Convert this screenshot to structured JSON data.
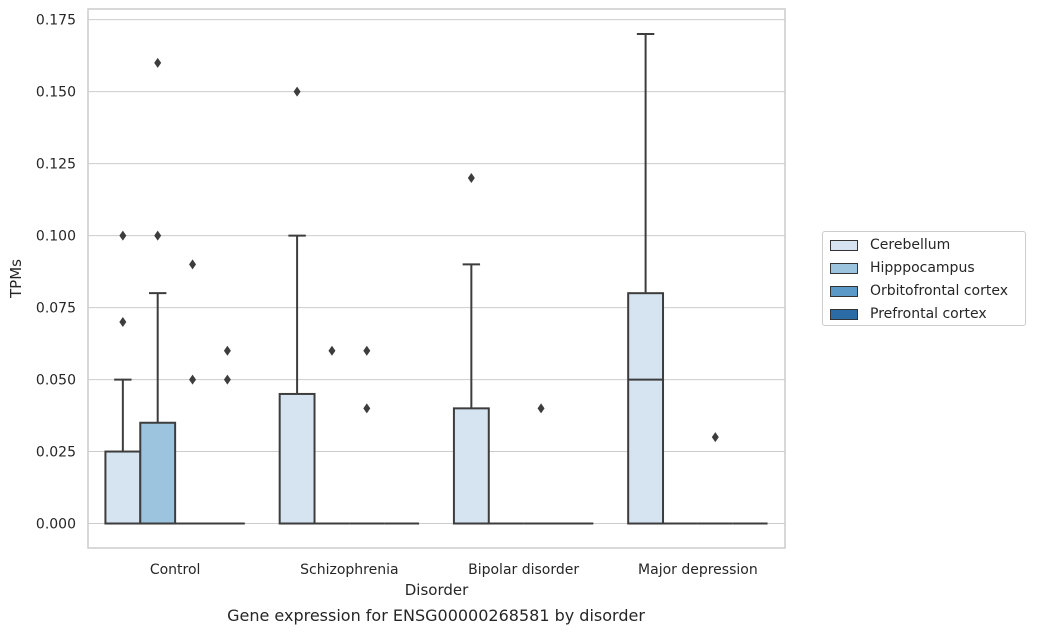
{
  "chart_data": {
    "type": "box",
    "xlabel": "Disorder",
    "ylabel": "TPMs",
    "categories": [
      "Control",
      "Schizophrenia",
      "Bipolar disorder",
      "Major depression"
    ],
    "ylim": [
      -0.0085,
      0.1787
    ],
    "yticks": [
      "0.000",
      "0.025",
      "0.050",
      "0.075",
      "0.100",
      "0.125",
      "0.150",
      "0.175"
    ],
    "grid": true,
    "legend_position": "right",
    "series": [
      {
        "name": "Cerebellum",
        "color": "#d6e4f2",
        "boxes": [
          {
            "q1": 0.0,
            "median": 0.0,
            "q3": 0.025,
            "whisker_low": 0.0,
            "whisker_high": 0.05,
            "fliers": [
              0.07,
              0.1
            ]
          },
          {
            "q1": 0.0,
            "median": 0.0,
            "q3": 0.045,
            "whisker_low": 0.0,
            "whisker_high": 0.1,
            "fliers": [
              0.15
            ]
          },
          {
            "q1": 0.0,
            "median": 0.0,
            "q3": 0.04,
            "whisker_low": 0.0,
            "whisker_high": 0.09,
            "fliers": [
              0.12
            ]
          },
          {
            "q1": 0.0,
            "median": 0.05,
            "q3": 0.08,
            "whisker_low": 0.0,
            "whisker_high": 0.17,
            "fliers": []
          }
        ]
      },
      {
        "name": "Hipppocampus",
        "color": "#9dc4de",
        "boxes": [
          {
            "q1": 0.0,
            "median": 0.0,
            "q3": 0.035,
            "whisker_low": 0.0,
            "whisker_high": 0.08,
            "fliers": [
              0.1,
              0.16
            ]
          },
          {
            "q1": 0.0,
            "median": 0.0,
            "q3": 0.0,
            "whisker_low": 0.0,
            "whisker_high": 0.0,
            "fliers": [
              0.06
            ]
          },
          {
            "q1": 0.0,
            "median": 0.0,
            "q3": 0.0,
            "whisker_low": 0.0,
            "whisker_high": 0.0,
            "fliers": []
          },
          {
            "q1": 0.0,
            "median": 0.0,
            "q3": 0.0,
            "whisker_low": 0.0,
            "whisker_high": 0.0,
            "fliers": []
          }
        ]
      },
      {
        "name": "Orbitofrontal cortex",
        "color": "#5b9ac8",
        "boxes": [
          {
            "q1": 0.0,
            "median": 0.0,
            "q3": 0.0,
            "whisker_low": 0.0,
            "whisker_high": 0.0,
            "fliers": [
              0.05,
              0.09
            ]
          },
          {
            "q1": 0.0,
            "median": 0.0,
            "q3": 0.0,
            "whisker_low": 0.0,
            "whisker_high": 0.0,
            "fliers": [
              0.04,
              0.06
            ]
          },
          {
            "q1": 0.0,
            "median": 0.0,
            "q3": 0.0,
            "whisker_low": 0.0,
            "whisker_high": 0.0,
            "fliers": [
              0.04
            ]
          },
          {
            "q1": 0.0,
            "median": 0.0,
            "q3": 0.0,
            "whisker_low": 0.0,
            "whisker_high": 0.0,
            "fliers": [
              0.03
            ]
          }
        ]
      },
      {
        "name": "Prefrontal cortex",
        "color": "#2b6ba6",
        "boxes": [
          {
            "q1": 0.0,
            "median": 0.0,
            "q3": 0.0,
            "whisker_low": 0.0,
            "whisker_high": 0.0,
            "fliers": [
              0.05,
              0.06
            ]
          },
          {
            "q1": 0.0,
            "median": 0.0,
            "q3": 0.0,
            "whisker_low": 0.0,
            "whisker_high": 0.0,
            "fliers": []
          },
          {
            "q1": 0.0,
            "median": 0.0,
            "q3": 0.0,
            "whisker_low": 0.0,
            "whisker_high": 0.0,
            "fliers": []
          },
          {
            "q1": 0.0,
            "median": 0.0,
            "q3": 0.0,
            "whisker_low": 0.0,
            "whisker_high": 0.0,
            "fliers": []
          }
        ]
      }
    ],
    "caption": "Gene expression for ENSG00000268581 by disorder"
  }
}
